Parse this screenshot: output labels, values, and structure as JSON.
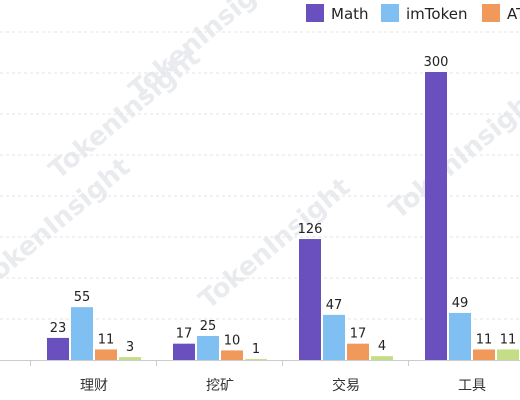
{
  "chart_data": {
    "type": "bar",
    "categories": [
      "理财",
      "挖矿",
      "交易",
      "工具"
    ],
    "series": [
      {
        "name": "Math",
        "values": [
          23,
          17,
          126,
          300
        ]
      },
      {
        "name": "imToken",
        "values": [
          55,
          25,
          47,
          49
        ]
      },
      {
        "name": "AT",
        "values": [
          11,
          10,
          17,
          11
        ]
      },
      {
        "name": "",
        "values": [
          3,
          1,
          4,
          11
        ]
      }
    ],
    "legend_labels": [
      "Math",
      "imToken",
      "AT"
    ],
    "colors": [
      "#6a4fbf",
      "#7fbff2",
      "#f0995a",
      "#c3de85"
    ],
    "grid": true,
    "legend_position": "top-right",
    "watermark": "TokenInsight"
  }
}
